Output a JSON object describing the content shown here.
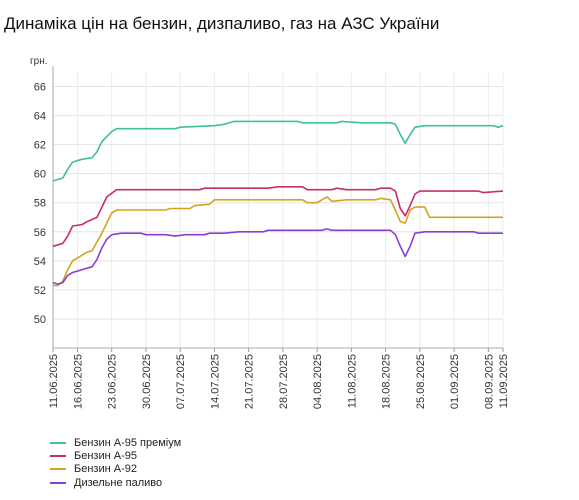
{
  "title": "Динаміка цін на бензин, дизпаливо, газ на АЗС України",
  "chart_data": {
    "type": "line",
    "title": "Динаміка цін на бензин, дизпаливо, газ на АЗС України",
    "ylabel": "грн.",
    "xlabel": "",
    "ylim": [
      48,
      67
    ],
    "yticks": [
      50,
      52,
      54,
      56,
      58,
      60,
      62,
      64,
      66
    ],
    "xticks": [
      "11.06.2025",
      "16.06.2025",
      "23.06.2025",
      "30.06.2025",
      "07.07.2025",
      "14.07.2025",
      "21.07.2025",
      "28.07.2025",
      "04.08.2025",
      "11.08.2025",
      "18.08.2025",
      "25.08.2025",
      "01.09.2025",
      "08.09.2025",
      "11.09.2025"
    ],
    "x_start": "11.06.2025",
    "x_end": "11.09.2025",
    "grid": true,
    "legend": "bottom",
    "series": [
      {
        "name": "Бензин А-95 преміум",
        "color": "#3fbf9f",
        "points": [
          [
            "11.06.2025",
            59.5
          ],
          [
            "13.06.2025",
            59.7
          ],
          [
            "14.06.2025",
            60.3
          ],
          [
            "15.06.2025",
            60.8
          ],
          [
            "17.06.2025",
            61.0
          ],
          [
            "19.06.2025",
            61.1
          ],
          [
            "20.06.2025",
            61.5
          ],
          [
            "21.06.2025",
            62.2
          ],
          [
            "23.06.2025",
            62.9
          ],
          [
            "24.06.2025",
            63.1
          ],
          [
            "01.07.2025",
            63.1
          ],
          [
            "06.07.2025",
            63.1
          ],
          [
            "07.07.2025",
            63.2
          ],
          [
            "14.07.2025",
            63.3
          ],
          [
            "16.07.2025",
            63.4
          ],
          [
            "18.07.2025",
            63.6
          ],
          [
            "31.07.2025",
            63.6
          ],
          [
            "01.08.2025",
            63.5
          ],
          [
            "08.08.2025",
            63.5
          ],
          [
            "09.08.2025",
            63.6
          ],
          [
            "13.08.2025",
            63.5
          ],
          [
            "19.08.2025",
            63.5
          ],
          [
            "20.08.2025",
            63.4
          ],
          [
            "21.08.2025",
            62.7
          ],
          [
            "22.08.2025",
            62.1
          ],
          [
            "23.08.2025",
            62.7
          ],
          [
            "24.08.2025",
            63.2
          ],
          [
            "26.08.2025",
            63.3
          ],
          [
            "06.09.2025",
            63.3
          ],
          [
            "09.09.2025",
            63.3
          ],
          [
            "10.09.2025",
            63.2
          ],
          [
            "11.09.2025",
            63.3
          ]
        ]
      },
      {
        "name": "Бензин А-95",
        "color": "#c82b6e",
        "points": [
          [
            "11.06.2025",
            55.0
          ],
          [
            "13.06.2025",
            55.2
          ],
          [
            "14.06.2025",
            55.7
          ],
          [
            "15.06.2025",
            56.4
          ],
          [
            "17.06.2025",
            56.5
          ],
          [
            "18.06.2025",
            56.7
          ],
          [
            "20.06.2025",
            57.0
          ],
          [
            "21.06.2025",
            57.7
          ],
          [
            "22.06.2025",
            58.4
          ],
          [
            "24.06.2025",
            58.9
          ],
          [
            "01.07.2025",
            58.9
          ],
          [
            "11.07.2025",
            58.9
          ],
          [
            "12.07.2025",
            59.0
          ],
          [
            "25.07.2025",
            59.0
          ],
          [
            "27.07.2025",
            59.1
          ],
          [
            "01.08.2025",
            59.1
          ],
          [
            "02.08.2025",
            58.9
          ],
          [
            "07.08.2025",
            58.9
          ],
          [
            "08.08.2025",
            59.0
          ],
          [
            "10.08.2025",
            58.9
          ],
          [
            "16.08.2025",
            58.9
          ],
          [
            "17.08.2025",
            59.0
          ],
          [
            "19.08.2025",
            59.0
          ],
          [
            "20.08.2025",
            58.8
          ],
          [
            "21.08.2025",
            57.6
          ],
          [
            "22.08.2025",
            57.1
          ],
          [
            "23.08.2025",
            57.8
          ],
          [
            "24.08.2025",
            58.6
          ],
          [
            "25.08.2025",
            58.8
          ],
          [
            "06.09.2025",
            58.8
          ],
          [
            "07.09.2025",
            58.7
          ],
          [
            "11.09.2025",
            58.8
          ]
        ]
      },
      {
        "name": "Бензин А-92",
        "color": "#d4a21f",
        "points": [
          [
            "11.06.2025",
            52.3
          ],
          [
            "12.06.2025",
            52.3
          ],
          [
            "13.06.2025",
            52.6
          ],
          [
            "14.06.2025",
            53.4
          ],
          [
            "15.06.2025",
            54.0
          ],
          [
            "16.06.2025",
            54.2
          ],
          [
            "18.06.2025",
            54.6
          ],
          [
            "19.06.2025",
            54.7
          ],
          [
            "20.06.2025",
            55.3
          ],
          [
            "21.06.2025",
            55.9
          ],
          [
            "22.06.2025",
            56.6
          ],
          [
            "23.06.2025",
            57.3
          ],
          [
            "24.06.2025",
            57.5
          ],
          [
            "01.07.2025",
            57.5
          ],
          [
            "04.07.2025",
            57.5
          ],
          [
            "05.07.2025",
            57.6
          ],
          [
            "09.07.2025",
            57.6
          ],
          [
            "10.07.2025",
            57.8
          ],
          [
            "13.07.2025",
            57.9
          ],
          [
            "14.07.2025",
            58.2
          ],
          [
            "01.08.2025",
            58.2
          ],
          [
            "02.08.2025",
            58.0
          ],
          [
            "04.08.2025",
            58.0
          ],
          [
            "06.08.2025",
            58.4
          ],
          [
            "07.08.2025",
            58.1
          ],
          [
            "10.08.2025",
            58.2
          ],
          [
            "16.08.2025",
            58.2
          ],
          [
            "17.08.2025",
            58.3
          ],
          [
            "19.08.2025",
            58.2
          ],
          [
            "20.08.2025",
            57.5
          ],
          [
            "21.08.2025",
            56.7
          ],
          [
            "22.08.2025",
            56.6
          ],
          [
            "23.08.2025",
            57.5
          ],
          [
            "24.08.2025",
            57.7
          ],
          [
            "26.08.2025",
            57.7
          ],
          [
            "27.08.2025",
            57.0
          ],
          [
            "01.09.2025",
            57.0
          ],
          [
            "11.09.2025",
            57.0
          ]
        ]
      },
      {
        "name": "Дизельне паливо",
        "color": "#8a3fd1",
        "points": [
          [
            "11.06.2025",
            52.5
          ],
          [
            "12.06.2025",
            52.4
          ],
          [
            "13.06.2025",
            52.5
          ],
          [
            "14.06.2025",
            53.0
          ],
          [
            "15.06.2025",
            53.2
          ],
          [
            "17.06.2025",
            53.4
          ],
          [
            "19.06.2025",
            53.6
          ],
          [
            "20.06.2025",
            54.1
          ],
          [
            "21.06.2025",
            54.9
          ],
          [
            "22.06.2025",
            55.5
          ],
          [
            "23.06.2025",
            55.8
          ],
          [
            "25.06.2025",
            55.9
          ],
          [
            "29.06.2025",
            55.9
          ],
          [
            "30.06.2025",
            55.8
          ],
          [
            "04.07.2025",
            55.8
          ],
          [
            "06.07.2025",
            55.7
          ],
          [
            "08.07.2025",
            55.8
          ],
          [
            "12.07.2025",
            55.8
          ],
          [
            "13.07.2025",
            55.9
          ],
          [
            "16.07.2025",
            55.9
          ],
          [
            "19.07.2025",
            56.0
          ],
          [
            "24.07.2025",
            56.0
          ],
          [
            "25.07.2025",
            56.1
          ],
          [
            "05.08.2025",
            56.1
          ],
          [
            "06.08.2025",
            56.2
          ],
          [
            "07.08.2025",
            56.1
          ],
          [
            "19.08.2025",
            56.1
          ],
          [
            "20.08.2025",
            55.8
          ],
          [
            "21.08.2025",
            55.0
          ],
          [
            "22.08.2025",
            54.3
          ],
          [
            "23.08.2025",
            55.0
          ],
          [
            "24.08.2025",
            55.9
          ],
          [
            "26.08.2025",
            56.0
          ],
          [
            "05.09.2025",
            56.0
          ],
          [
            "06.09.2025",
            55.9
          ],
          [
            "11.09.2025",
            55.9
          ]
        ]
      }
    ]
  }
}
